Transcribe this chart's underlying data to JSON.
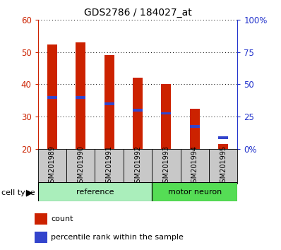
{
  "title": "GDS2786 / 184027_at",
  "samples": [
    "GSM201989",
    "GSM201990",
    "GSM201991",
    "GSM201992",
    "GSM201993",
    "GSM201994",
    "GSM201995"
  ],
  "count_values": [
    52.5,
    53.0,
    49.0,
    42.0,
    40.0,
    32.5,
    21.5
  ],
  "percentile_values": [
    36.0,
    36.0,
    34.0,
    32.0,
    31.0,
    27.0,
    23.5
  ],
  "bar_bottom": 20,
  "ylim_left": [
    20,
    60
  ],
  "ylim_right": [
    0,
    100
  ],
  "yticks_left": [
    20,
    30,
    40,
    50,
    60
  ],
  "yticks_right": [
    0,
    25,
    50,
    75,
    100
  ],
  "ytick_labels_right": [
    "0%",
    "25",
    "50",
    "75",
    "100%"
  ],
  "bar_color": "#cc2200",
  "percentile_color": "#3344cc",
  "bg_color_xticklabels": "#c8c8c8",
  "reference_color": "#aaeebb",
  "motor_color": "#55dd55",
  "left_axis_color": "#cc2200",
  "right_axis_color": "#2233cc",
  "bar_width": 0.35,
  "n_ref": 4,
  "n_motor": 3
}
